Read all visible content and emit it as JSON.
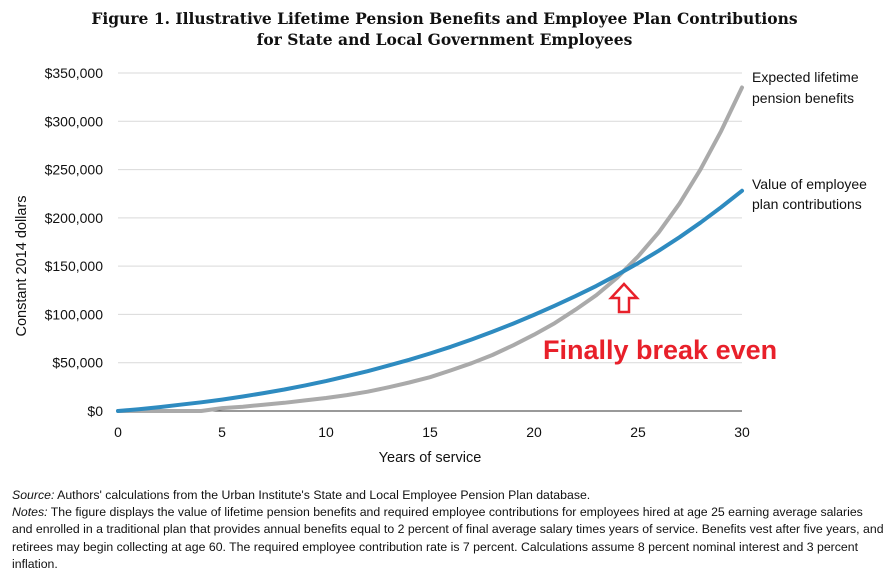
{
  "figure": {
    "title_line1": "Figure 1. Illustrative Lifetime Pension Benefits and Employee Plan Contributions",
    "title_line2": "for State and Local Government Employees"
  },
  "annotation": {
    "text": "Finally break even",
    "color": "#e8202a"
  },
  "notes": {
    "source_label": "Source:",
    "source_text": " Authors' calculations from the Urban Institute's State and Local Employee Pension Plan database.",
    "notes_label": "Notes:",
    "notes_text": " The figure displays the value of lifetime pension benefits and required employee contributions for employees hired at age 25 earning average salaries and enrolled in a traditional plan that provides annual benefits equal to 2 percent of final average salary times years of service. Benefits vest after five years, and retirees may begin collecting at age 60. The required employee contribution rate is 7 percent. Calculations assume 8 percent nominal interest and 3 percent inflation."
  },
  "chart_data": {
    "type": "line",
    "xlabel": "Years of service",
    "ylabel": "Constant 2014 dollars",
    "xlim": [
      0,
      30
    ],
    "ylim": [
      0,
      350000
    ],
    "x_ticks": [
      "0",
      "5",
      "10",
      "15",
      "20",
      "25",
      "30"
    ],
    "y_ticks": [
      "$0",
      "$50,000",
      "$100,000",
      "$150,000",
      "$200,000",
      "$250,000",
      "$300,000",
      "$350,000"
    ],
    "grid": "horizontal",
    "series": [
      {
        "name": "Expected lifetime pension benefits",
        "label_line1": "Expected lifetime",
        "label_line2": "pension benefits",
        "color": "#aaaaaa",
        "x": [
          0,
          1,
          2,
          3,
          4,
          5,
          6,
          7,
          8,
          9,
          10,
          11,
          12,
          13,
          14,
          15,
          16,
          17,
          18,
          19,
          20,
          21,
          22,
          23,
          24,
          25,
          26,
          27,
          28,
          29,
          30
        ],
        "y": [
          0,
          0,
          0,
          0,
          0,
          3000,
          4500,
          6500,
          8500,
          11000,
          13500,
          16500,
          20000,
          24500,
          29500,
          35000,
          42000,
          49500,
          58000,
          68000,
          79000,
          91000,
          105000,
          120000,
          138000,
          160000,
          185000,
          215000,
          250000,
          290000,
          335000
        ]
      },
      {
        "name": "Value of employee plan contributions",
        "label_line1": "Value of employee",
        "label_line2": "plan contributions",
        "color": "#2e8bc0",
        "x": [
          0,
          1,
          2,
          3,
          4,
          5,
          6,
          7,
          8,
          9,
          10,
          11,
          12,
          13,
          14,
          15,
          16,
          17,
          18,
          19,
          20,
          21,
          22,
          23,
          24,
          25,
          26,
          27,
          28,
          29,
          30
        ],
        "y": [
          0,
          1900,
          4000,
          6500,
          9000,
          11800,
          15000,
          18500,
          22300,
          26500,
          31000,
          36000,
          41200,
          47000,
          53000,
          59500,
          66500,
          74000,
          82000,
          90500,
          99500,
          109000,
          119000,
          129500,
          141000,
          153000,
          166000,
          180000,
          195000,
          211000,
          228000
        ]
      }
    ]
  }
}
